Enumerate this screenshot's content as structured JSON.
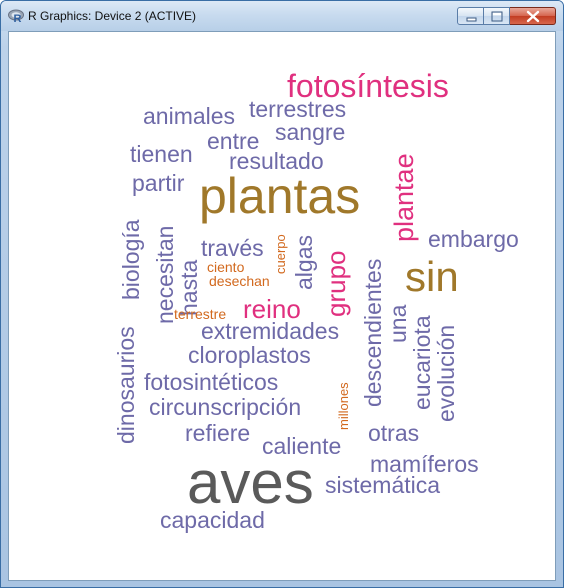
{
  "window": {
    "title": "R Graphics: Device 2 (ACTIVE)",
    "icon": "r-logo-icon",
    "controls": [
      "minimize-icon",
      "maximize-icon",
      "close-icon"
    ]
  },
  "colors": {
    "purple": "#6e6aa8",
    "magenta": "#e0307f",
    "gold": "#a0782a",
    "gray": "#5a5a5a",
    "orange": "#d2691e"
  },
  "wordcloud": {
    "words": [
      {
        "text": "aves",
        "color": "#5a5a5a",
        "orientation": "horizontal"
      },
      {
        "text": "plantas",
        "color": "#a0782a",
        "orientation": "horizontal"
      },
      {
        "text": "sin",
        "color": "#a0782a",
        "orientation": "horizontal"
      },
      {
        "text": "fotosíntesis",
        "color": "#e0307f",
        "orientation": "horizontal"
      },
      {
        "text": "plantae",
        "color": "#e0307f",
        "orientation": "vertical"
      },
      {
        "text": "grupo",
        "color": "#e0307f",
        "orientation": "vertical"
      },
      {
        "text": "reino",
        "color": "#e0307f",
        "orientation": "horizontal"
      },
      {
        "text": "animales",
        "color": "#6e6aa8",
        "orientation": "horizontal"
      },
      {
        "text": "terrestres",
        "color": "#6e6aa8",
        "orientation": "horizontal"
      },
      {
        "text": "entre",
        "color": "#6e6aa8",
        "orientation": "horizontal"
      },
      {
        "text": "sangre",
        "color": "#6e6aa8",
        "orientation": "horizontal"
      },
      {
        "text": "tienen",
        "color": "#6e6aa8",
        "orientation": "horizontal"
      },
      {
        "text": "resultado",
        "color": "#6e6aa8",
        "orientation": "horizontal"
      },
      {
        "text": "partir",
        "color": "#6e6aa8",
        "orientation": "horizontal"
      },
      {
        "text": "embargo",
        "color": "#6e6aa8",
        "orientation": "horizontal"
      },
      {
        "text": "biología",
        "color": "#6e6aa8",
        "orientation": "vertical"
      },
      {
        "text": "necesitan",
        "color": "#6e6aa8",
        "orientation": "vertical"
      },
      {
        "text": "hasta",
        "color": "#6e6aa8",
        "orientation": "vertical"
      },
      {
        "text": "través",
        "color": "#6e6aa8",
        "orientation": "horizontal"
      },
      {
        "text": "cuerpo",
        "color": "#d2691e",
        "orientation": "vertical"
      },
      {
        "text": "algas",
        "color": "#6e6aa8",
        "orientation": "vertical"
      },
      {
        "text": "ciento",
        "color": "#d2691e",
        "orientation": "horizontal"
      },
      {
        "text": "desechan",
        "color": "#d2691e",
        "orientation": "horizontal"
      },
      {
        "text": "terrestre",
        "color": "#d2691e",
        "orientation": "horizontal"
      },
      {
        "text": "descendientes",
        "color": "#6e6aa8",
        "orientation": "vertical"
      },
      {
        "text": "una",
        "color": "#6e6aa8",
        "orientation": "vertical"
      },
      {
        "text": "eucariota",
        "color": "#6e6aa8",
        "orientation": "vertical"
      },
      {
        "text": "evolución",
        "color": "#6e6aa8",
        "orientation": "vertical"
      },
      {
        "text": "dinosaurios",
        "color": "#6e6aa8",
        "orientation": "vertical"
      },
      {
        "text": "extremidades",
        "color": "#6e6aa8",
        "orientation": "horizontal"
      },
      {
        "text": "cloroplastos",
        "color": "#6e6aa8",
        "orientation": "horizontal"
      },
      {
        "text": "fotosintéticos",
        "color": "#6e6aa8",
        "orientation": "horizontal"
      },
      {
        "text": "millones",
        "color": "#d2691e",
        "orientation": "vertical"
      },
      {
        "text": "circunscripción",
        "color": "#6e6aa8",
        "orientation": "horizontal"
      },
      {
        "text": "refiere",
        "color": "#6e6aa8",
        "orientation": "horizontal"
      },
      {
        "text": "otras",
        "color": "#6e6aa8",
        "orientation": "horizontal"
      },
      {
        "text": "caliente",
        "color": "#6e6aa8",
        "orientation": "horizontal"
      },
      {
        "text": "mamíferos",
        "color": "#6e6aa8",
        "orientation": "horizontal"
      },
      {
        "text": "sistemática",
        "color": "#6e6aa8",
        "orientation": "horizontal"
      },
      {
        "text": "capacidad",
        "color": "#6e6aa8",
        "orientation": "horizontal"
      }
    ]
  }
}
